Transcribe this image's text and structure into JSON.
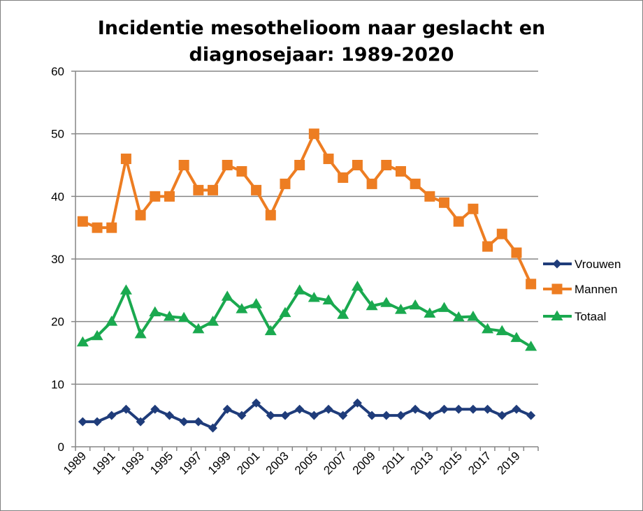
{
  "chart_data": {
    "type": "line",
    "title_line1": "Incidentie mesothelioom naar geslacht en",
    "title_line2": "diagnosejaar: 1989-2020",
    "xlabel": "",
    "ylabel": "",
    "ylim": [
      0,
      60
    ],
    "yticks": [
      0,
      10,
      20,
      30,
      40,
      50,
      60
    ],
    "x": [
      1989,
      1990,
      1991,
      1992,
      1993,
      1994,
      1995,
      1996,
      1997,
      1998,
      1999,
      2000,
      2001,
      2002,
      2003,
      2004,
      2005,
      2006,
      2007,
      2008,
      2009,
      2010,
      2011,
      2012,
      2013,
      2014,
      2015,
      2016,
      2017,
      2018,
      2019,
      2020
    ],
    "xtick_labels": [
      "1989",
      "1991",
      "1993",
      "1995",
      "1997",
      "1999",
      "2001",
      "2003",
      "2005",
      "2007",
      "2009",
      "2011",
      "2013",
      "2015",
      "2017",
      "2019"
    ],
    "grid": "horizontal",
    "legend_position": "right",
    "series": [
      {
        "name": "Vrouwen",
        "color": "#1f3c7a",
        "marker": "diamond",
        "values": [
          4,
          4,
          5,
          6,
          4,
          6,
          5,
          4,
          4,
          3,
          6,
          5,
          7,
          5,
          5,
          6,
          5,
          6,
          5,
          7,
          5,
          5,
          5,
          6,
          5,
          6,
          6,
          6,
          6,
          5,
          6,
          5
        ]
      },
      {
        "name": "Mannen",
        "color": "#ed7d22",
        "marker": "square",
        "values": [
          36,
          35,
          35,
          46,
          37,
          40,
          40,
          45,
          41,
          41,
          45,
          44,
          41,
          37,
          42,
          45,
          50,
          46,
          43,
          45,
          42,
          45,
          44,
          42,
          40,
          39,
          36,
          38,
          32,
          34,
          31,
          26
        ]
      },
      {
        "name": "Totaal",
        "color": "#1aa94f",
        "marker": "triangle",
        "values": [
          16.7,
          17.7,
          20,
          25,
          18,
          21.5,
          20.8,
          20.6,
          18.8,
          20,
          24,
          22,
          22.8,
          18.5,
          21.4,
          25,
          23.8,
          23.4,
          21.1,
          25.6,
          22.5,
          23,
          21.9,
          22.6,
          21.3,
          22.2,
          20.7,
          20.8,
          18.8,
          18.5,
          17.4,
          16
        ]
      }
    ]
  }
}
